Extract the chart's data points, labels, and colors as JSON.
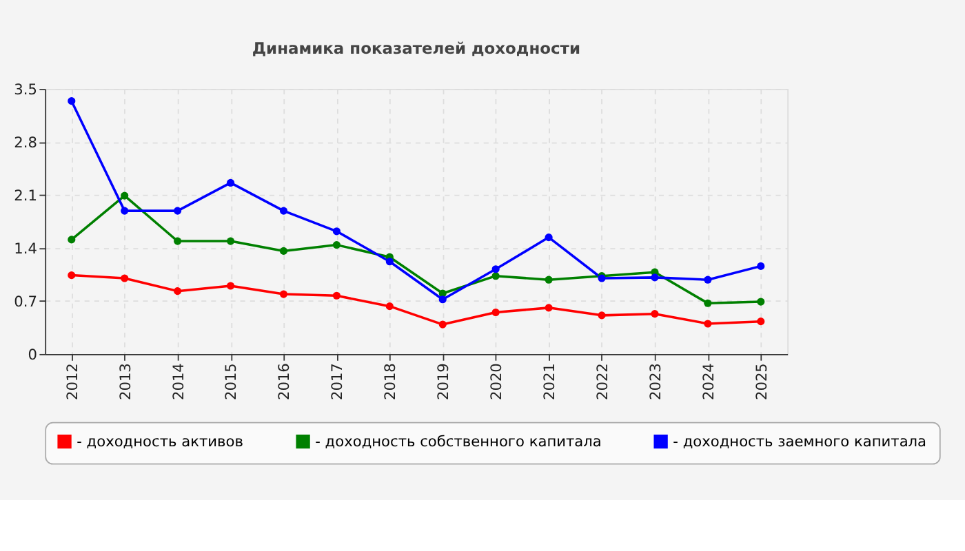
{
  "chart_data": {
    "type": "line",
    "title": "Динамика показателей доходности",
    "categories": [
      "2012",
      "2013",
      "2014",
      "2015",
      "2016",
      "2017",
      "2018",
      "2019",
      "2020",
      "2021",
      "2022",
      "2023",
      "2024",
      "2025"
    ],
    "series": [
      {
        "name": "- доходность активов",
        "color": "#ff0000",
        "values": [
          1.04,
          1.0,
          0.83,
          0.9,
          0.79,
          0.77,
          0.63,
          0.39,
          0.55,
          0.61,
          0.51,
          0.53,
          0.4,
          0.43
        ]
      },
      {
        "name": "- доходность собственного капитала",
        "color": "#008000",
        "values": [
          1.51,
          2.09,
          1.49,
          1.49,
          1.36,
          1.44,
          1.28,
          0.8,
          1.03,
          0.98,
          1.03,
          1.08,
          0.67,
          0.69
        ]
      },
      {
        "name": "- доходность заемного капитала",
        "color": "#0000ff",
        "values": [
          3.34,
          1.89,
          1.89,
          2.26,
          1.89,
          1.62,
          1.22,
          0.72,
          1.12,
          1.54,
          1.0,
          1.01,
          0.98,
          1.16
        ]
      }
    ],
    "ylim": [
      0,
      3.5
    ],
    "yticks": [
      0,
      0.7,
      1.4,
      2.1,
      2.8,
      3.5
    ],
    "grid": true,
    "legend": "bottom",
    "marker": "circle",
    "line_style": "solid"
  }
}
